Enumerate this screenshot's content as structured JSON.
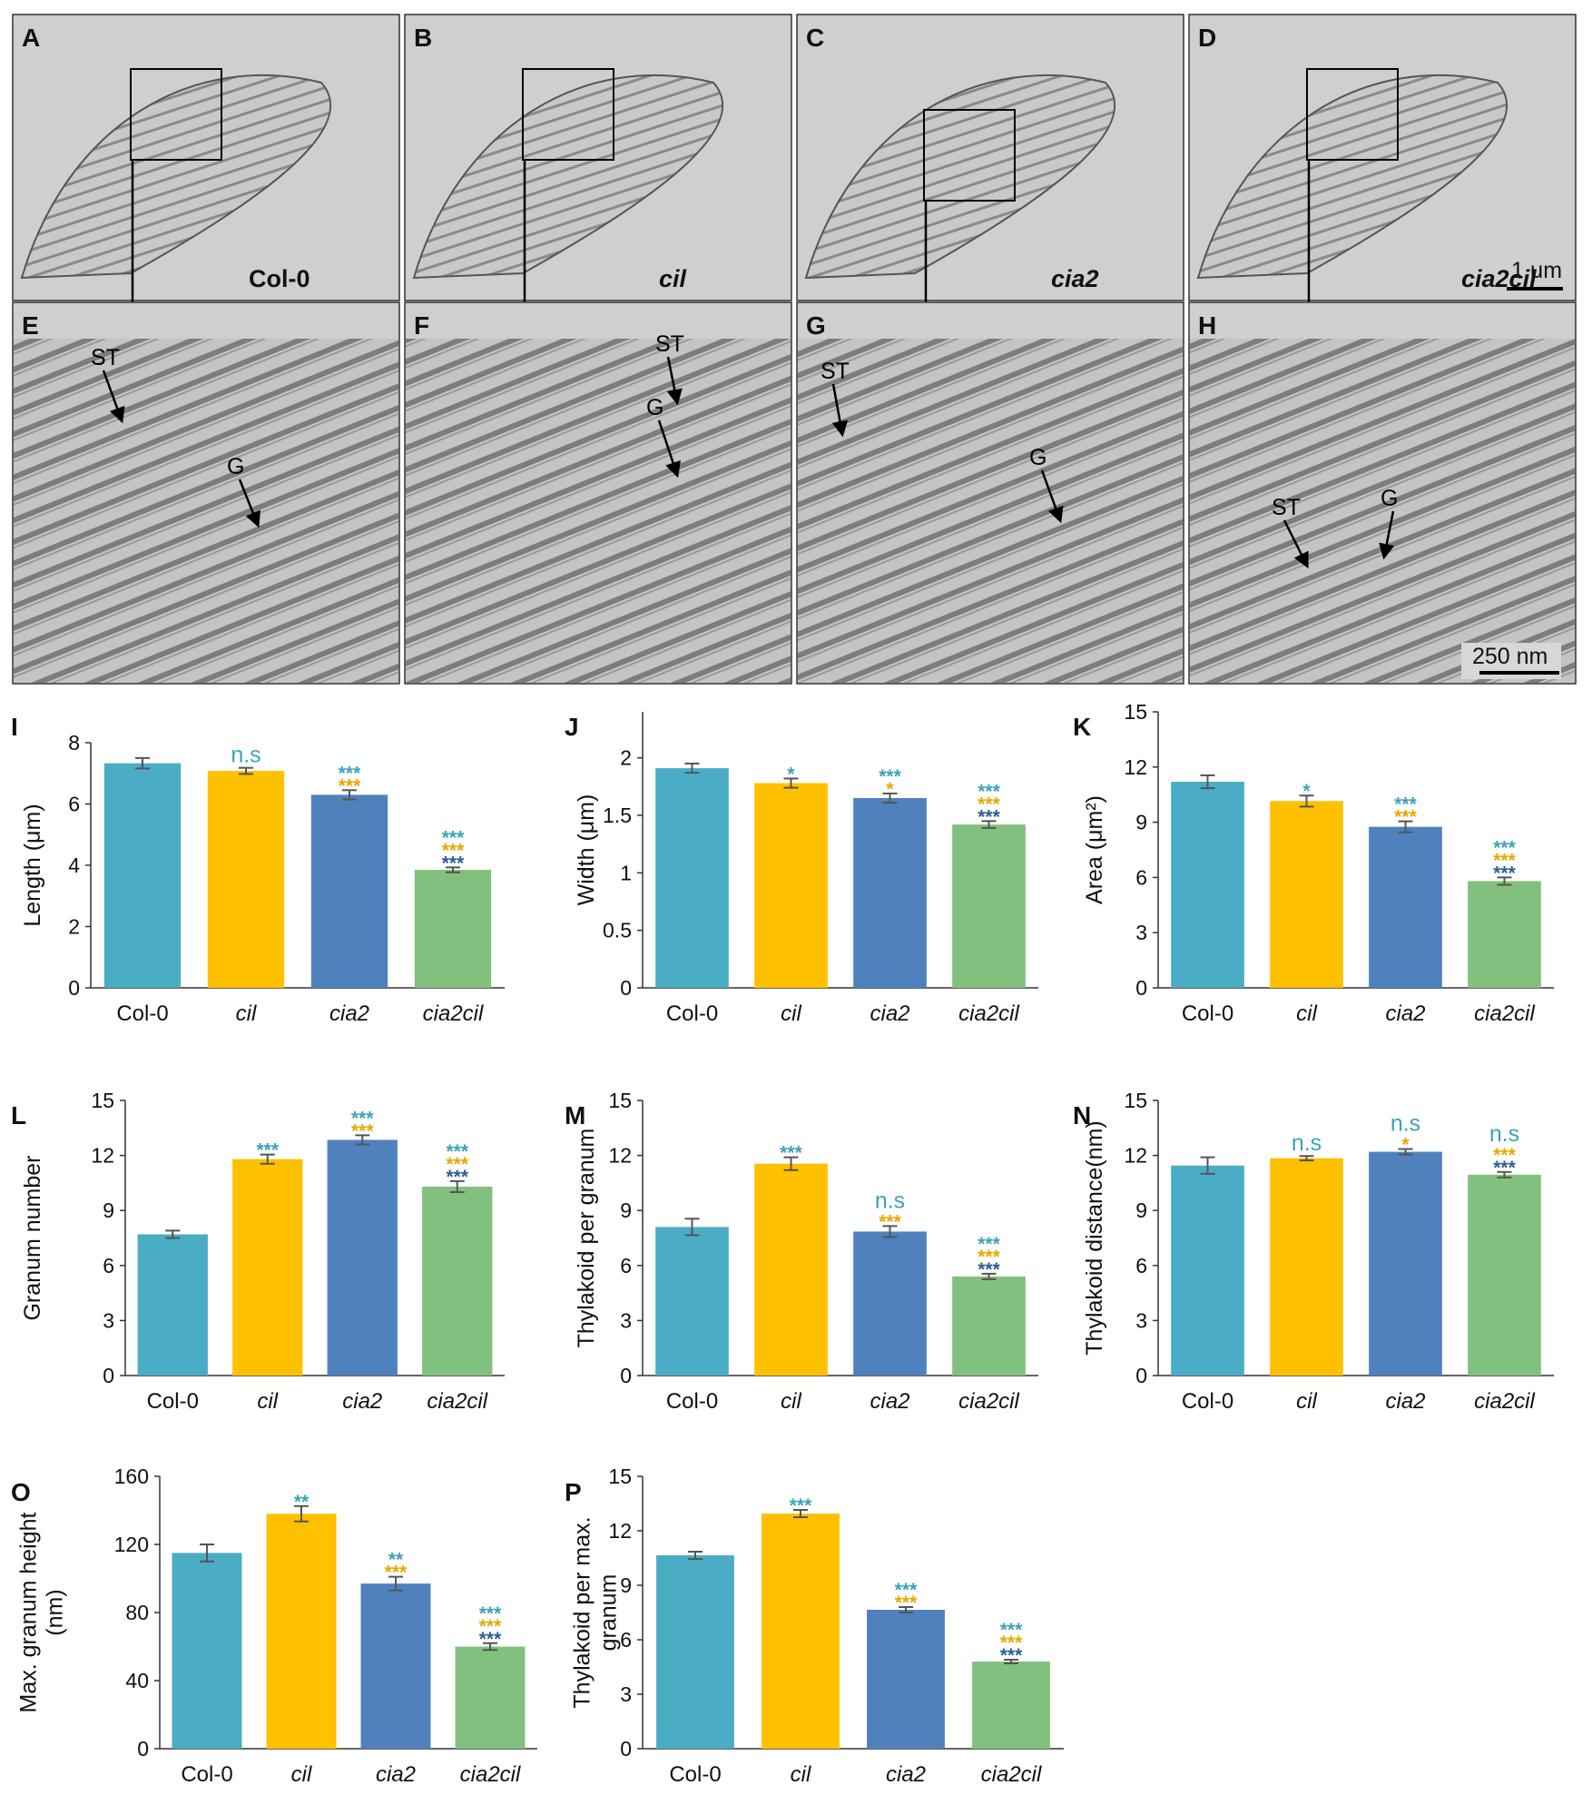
{
  "colors": {
    "col0": "#4BACC6",
    "cil": "#FFC000",
    "cia2": "#4F81BD",
    "cia2cil": "#82C07E",
    "sig_col0": "#3DA3B8",
    "sig_cil": "#E8A800",
    "sig_cia2": "#2E5E91",
    "error_bar": "#555555"
  },
  "micrographs": {
    "top_row": [
      {
        "letter": "A",
        "label": "Col-0",
        "italic": false
      },
      {
        "letter": "B",
        "label": "cil",
        "italic": true
      },
      {
        "letter": "C",
        "label": "cia2",
        "italic": true
      },
      {
        "letter": "D",
        "label": "cia2cil",
        "italic": true
      }
    ],
    "bottom_row": [
      {
        "letter": "E",
        "annotations": [
          "ST",
          "G"
        ]
      },
      {
        "letter": "F",
        "annotations": [
          "G",
          "ST"
        ]
      },
      {
        "letter": "G",
        "annotations": [
          "ST",
          "G"
        ]
      },
      {
        "letter": "H",
        "annotations": [
          "ST",
          "G"
        ]
      }
    ],
    "scale_bar_top": "1 μm",
    "scale_bar_bottom": "250 nm"
  },
  "chart_data": [
    {
      "panel": "I",
      "type": "bar",
      "ylabel": "Length (μm)",
      "ylim": [
        0,
        8
      ],
      "yticks": [
        "0",
        "2",
        "4",
        "6",
        "8"
      ],
      "categories": [
        "Col-0",
        "cil",
        "cia2",
        "cia2cil"
      ],
      "values": [
        7.33,
        7.08,
        6.3,
        3.85
      ],
      "errors": [
        0.17,
        0.1,
        0.15,
        0.08
      ],
      "significance": [
        [],
        [
          "n.s"
        ],
        [
          "***",
          "***"
        ],
        [
          "***",
          "***",
          "***"
        ]
      ]
    },
    {
      "panel": "J",
      "type": "bar",
      "ylabel": "Width (μm)",
      "ylim": [
        0,
        2.4
      ],
      "yticks": [
        "0",
        "0.5",
        "1",
        "1.5",
        "2"
      ],
      "categories": [
        "Col-0",
        "cil",
        "cia2",
        "cia2cil"
      ],
      "values": [
        1.91,
        1.78,
        1.65,
        1.42
      ],
      "errors": [
        0.04,
        0.04,
        0.04,
        0.03
      ],
      "significance": [
        [],
        [
          "*"
        ],
        [
          "***",
          "*"
        ],
        [
          "***",
          "***",
          "***"
        ]
      ]
    },
    {
      "panel": "K",
      "type": "bar",
      "ylabel": "Area (μm²)",
      "ylim": [
        0,
        15
      ],
      "yticks": [
        "0",
        "3",
        "6",
        "9",
        "12",
        "15"
      ],
      "categories": [
        "Col-0",
        "cil",
        "cia2",
        "cia2cil"
      ],
      "values": [
        11.2,
        10.15,
        8.75,
        5.8
      ],
      "errors": [
        0.35,
        0.3,
        0.3,
        0.2
      ],
      "significance": [
        [],
        [
          "*"
        ],
        [
          "***",
          "***"
        ],
        [
          "***",
          "***",
          "***"
        ]
      ]
    },
    {
      "panel": "L",
      "type": "bar",
      "ylabel": "Granum number",
      "ylim": [
        0,
        15
      ],
      "yticks": [
        "0",
        "3",
        "6",
        "9",
        "12",
        "15"
      ],
      "categories": [
        "Col-0",
        "cil",
        "cia2",
        "cia2cil"
      ],
      "values": [
        7.7,
        11.8,
        12.85,
        10.3
      ],
      "errors": [
        0.2,
        0.25,
        0.25,
        0.3
      ],
      "significance": [
        [],
        [
          "***"
        ],
        [
          "***",
          "***"
        ],
        [
          "***",
          "***",
          "***"
        ]
      ]
    },
    {
      "panel": "M",
      "type": "bar",
      "ylabel": "Thylakoid per granum",
      "ylim": [
        0,
        15
      ],
      "yticks": [
        "0",
        "3",
        "6",
        "9",
        "12",
        "15"
      ],
      "categories": [
        "Col-0",
        "cil",
        "cia2",
        "cia2cil"
      ],
      "values": [
        8.1,
        11.55,
        7.85,
        5.4
      ],
      "errors": [
        0.45,
        0.35,
        0.3,
        0.15
      ],
      "significance": [
        [],
        [
          "***"
        ],
        [
          "n.s",
          "***"
        ],
        [
          "***",
          "***",
          "***"
        ]
      ]
    },
    {
      "panel": "N",
      "type": "bar",
      "ylabel": "Thylakoid distance(nm)",
      "ylim": [
        0,
        15
      ],
      "yticks": [
        "0",
        "3",
        "6",
        "9",
        "12",
        "15"
      ],
      "categories": [
        "Col-0",
        "cil",
        "cia2",
        "cia2cil"
      ],
      "values": [
        11.45,
        11.85,
        12.2,
        10.95
      ],
      "errors": [
        0.45,
        0.12,
        0.15,
        0.15
      ],
      "significance": [
        [],
        [
          "n.s"
        ],
        [
          "n.s",
          "*"
        ],
        [
          "n.s",
          "***",
          "***"
        ]
      ]
    },
    {
      "panel": "O",
      "type": "bar",
      "ylabel": [
        "Max. granum height",
        "(nm)"
      ],
      "ylim": [
        0,
        160
      ],
      "yticks": [
        "0",
        "40",
        "80",
        "120",
        "160"
      ],
      "categories": [
        "Col-0",
        "cil",
        "cia2",
        "cia2cil"
      ],
      "values": [
        115,
        138,
        97,
        60
      ],
      "errors": [
        5,
        4.5,
        4,
        2
      ],
      "significance": [
        [],
        [
          "**"
        ],
        [
          "**",
          "***"
        ],
        [
          "***",
          "***",
          "***"
        ]
      ]
    },
    {
      "panel": "P",
      "type": "bar",
      "ylabel": [
        "Thylakoid per max.",
        "granum"
      ],
      "ylim": [
        0,
        15
      ],
      "yticks": [
        "0",
        "3",
        "6",
        "9",
        "12",
        "15"
      ],
      "categories": [
        "Col-0",
        "cil",
        "cia2",
        "cia2cil"
      ],
      "values": [
        10.65,
        12.95,
        7.65,
        4.8
      ],
      "errors": [
        0.2,
        0.2,
        0.15,
        0.1
      ],
      "significance": [
        [],
        [
          "***"
        ],
        [
          "***",
          "***"
        ],
        [
          "***",
          "***",
          "***"
        ]
      ]
    }
  ]
}
